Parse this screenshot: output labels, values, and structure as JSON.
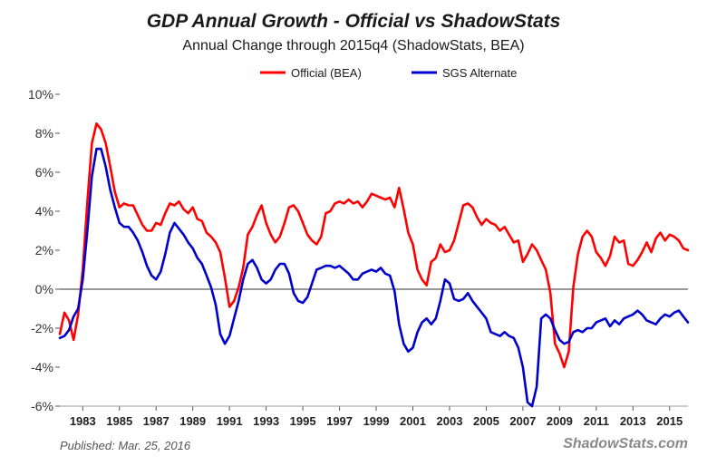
{
  "chart_data": {
    "type": "line",
    "title": "GDP Annual Growth - Official vs ShadowStats",
    "subtitle": "Annual Change through 2015q4  (ShadowStats, BEA)",
    "xlabel": "",
    "ylabel": "",
    "ylim": [
      -6,
      10
    ],
    "xlim": [
      1981.75,
      2016.0
    ],
    "grid": false,
    "legend_position": "top",
    "y_ticks": [
      {
        "value": 10,
        "label": "10%"
      },
      {
        "value": 8,
        "label": "8%"
      },
      {
        "value": 6,
        "label": "6%"
      },
      {
        "value": 4,
        "label": "4%"
      },
      {
        "value": 2,
        "label": "2%"
      },
      {
        "value": 0,
        "label": "0%"
      },
      {
        "value": -2,
        "label": "-2%"
      },
      {
        "value": -4,
        "label": "-4%"
      },
      {
        "value": -6,
        "label": "-6%"
      }
    ],
    "x_ticks": [
      {
        "value": 1983,
        "label": "1983"
      },
      {
        "value": 1985,
        "label": "1985"
      },
      {
        "value": 1987,
        "label": "1987"
      },
      {
        "value": 1989,
        "label": "1989"
      },
      {
        "value": 1991,
        "label": "1991"
      },
      {
        "value": 1993,
        "label": "1993"
      },
      {
        "value": 1995,
        "label": "1995"
      },
      {
        "value": 1997,
        "label": "1997"
      },
      {
        "value": 1999,
        "label": "1999"
      },
      {
        "value": 2001,
        "label": "2001"
      },
      {
        "value": 2003,
        "label": "2003"
      },
      {
        "value": 2005,
        "label": "2005"
      },
      {
        "value": 2007,
        "label": "2007"
      },
      {
        "value": 2009,
        "label": "2009"
      },
      {
        "value": 2011,
        "label": "2011"
      },
      {
        "value": 2013,
        "label": "2013"
      },
      {
        "value": 2015,
        "label": "2015"
      }
    ],
    "zero_line": 0,
    "series": [
      {
        "name": "Official (BEA)",
        "color": "#ff0000",
        "points": [
          [
            1981.75,
            -2.3
          ],
          [
            1982.0,
            -1.2
          ],
          [
            1982.25,
            -1.6
          ],
          [
            1982.5,
            -2.6
          ],
          [
            1982.75,
            -1.3
          ],
          [
            1983.0,
            1.0
          ],
          [
            1983.25,
            4.5
          ],
          [
            1983.5,
            7.5
          ],
          [
            1983.75,
            8.5
          ],
          [
            1984.0,
            8.2
          ],
          [
            1984.25,
            7.5
          ],
          [
            1984.5,
            6.3
          ],
          [
            1984.75,
            5.0
          ],
          [
            1985.0,
            4.2
          ],
          [
            1985.25,
            4.4
          ],
          [
            1985.5,
            4.3
          ],
          [
            1985.75,
            4.3
          ],
          [
            1986.0,
            3.8
          ],
          [
            1986.25,
            3.3
          ],
          [
            1986.5,
            3.0
          ],
          [
            1986.75,
            3.0
          ],
          [
            1987.0,
            3.4
          ],
          [
            1987.25,
            3.3
          ],
          [
            1987.5,
            3.9
          ],
          [
            1987.75,
            4.4
          ],
          [
            1988.0,
            4.3
          ],
          [
            1988.25,
            4.5
          ],
          [
            1988.5,
            4.1
          ],
          [
            1988.75,
            3.9
          ],
          [
            1989.0,
            4.2
          ],
          [
            1989.25,
            3.6
          ],
          [
            1989.5,
            3.5
          ],
          [
            1989.75,
            2.9
          ],
          [
            1990.0,
            2.7
          ],
          [
            1990.25,
            2.4
          ],
          [
            1990.5,
            1.9
          ],
          [
            1990.75,
            0.6
          ],
          [
            1991.0,
            -0.9
          ],
          [
            1991.25,
            -0.6
          ],
          [
            1991.5,
            0.1
          ],
          [
            1991.75,
            1.1
          ],
          [
            1992.0,
            2.8
          ],
          [
            1992.25,
            3.2
          ],
          [
            1992.5,
            3.8
          ],
          [
            1992.75,
            4.3
          ],
          [
            1993.0,
            3.4
          ],
          [
            1993.25,
            2.8
          ],
          [
            1993.5,
            2.4
          ],
          [
            1993.75,
            2.7
          ],
          [
            1994.0,
            3.4
          ],
          [
            1994.25,
            4.2
          ],
          [
            1994.5,
            4.3
          ],
          [
            1994.75,
            4.0
          ],
          [
            1995.0,
            3.4
          ],
          [
            1995.25,
            2.8
          ],
          [
            1995.5,
            2.5
          ],
          [
            1995.75,
            2.3
          ],
          [
            1996.0,
            2.7
          ],
          [
            1996.25,
            3.9
          ],
          [
            1996.5,
            4.0
          ],
          [
            1996.75,
            4.4
          ],
          [
            1997.0,
            4.5
          ],
          [
            1997.25,
            4.4
          ],
          [
            1997.5,
            4.6
          ],
          [
            1997.75,
            4.4
          ],
          [
            1998.0,
            4.5
          ],
          [
            1998.25,
            4.2
          ],
          [
            1998.5,
            4.5
          ],
          [
            1998.75,
            4.9
          ],
          [
            1999.0,
            4.8
          ],
          [
            1999.25,
            4.7
          ],
          [
            1999.5,
            4.6
          ],
          [
            1999.75,
            4.7
          ],
          [
            2000.0,
            4.2
          ],
          [
            2000.25,
            5.2
          ],
          [
            2000.5,
            4.1
          ],
          [
            2000.75,
            2.9
          ],
          [
            2001.0,
            2.3
          ],
          [
            2001.25,
            1.0
          ],
          [
            2001.5,
            0.5
          ],
          [
            2001.75,
            0.2
          ],
          [
            2002.0,
            1.4
          ],
          [
            2002.25,
            1.6
          ],
          [
            2002.5,
            2.3
          ],
          [
            2002.75,
            1.9
          ],
          [
            2003.0,
            2.0
          ],
          [
            2003.25,
            2.5
          ],
          [
            2003.5,
            3.4
          ],
          [
            2003.75,
            4.3
          ],
          [
            2004.0,
            4.4
          ],
          [
            2004.25,
            4.2
          ],
          [
            2004.5,
            3.7
          ],
          [
            2004.75,
            3.3
          ],
          [
            2005.0,
            3.6
          ],
          [
            2005.25,
            3.4
          ],
          [
            2005.5,
            3.3
          ],
          [
            2005.75,
            3.0
          ],
          [
            2006.0,
            3.2
          ],
          [
            2006.25,
            2.8
          ],
          [
            2006.5,
            2.4
          ],
          [
            2006.75,
            2.5
          ],
          [
            2007.0,
            1.4
          ],
          [
            2007.25,
            1.8
          ],
          [
            2007.5,
            2.3
          ],
          [
            2007.75,
            2.0
          ],
          [
            2008.0,
            1.5
          ],
          [
            2008.25,
            1.0
          ],
          [
            2008.5,
            -0.2
          ],
          [
            2008.75,
            -2.8
          ],
          [
            2009.0,
            -3.3
          ],
          [
            2009.25,
            -4.0
          ],
          [
            2009.5,
            -3.2
          ],
          [
            2009.75,
            0.1
          ],
          [
            2010.0,
            1.8
          ],
          [
            2010.25,
            2.7
          ],
          [
            2010.5,
            3.0
          ],
          [
            2010.75,
            2.7
          ],
          [
            2011.0,
            1.9
          ],
          [
            2011.25,
            1.6
          ],
          [
            2011.5,
            1.2
          ],
          [
            2011.75,
            1.7
          ],
          [
            2012.0,
            2.7
          ],
          [
            2012.25,
            2.4
          ],
          [
            2012.5,
            2.5
          ],
          [
            2012.75,
            1.3
          ],
          [
            2013.0,
            1.2
          ],
          [
            2013.25,
            1.5
          ],
          [
            2013.5,
            1.9
          ],
          [
            2013.75,
            2.4
          ],
          [
            2014.0,
            1.9
          ],
          [
            2014.25,
            2.6
          ],
          [
            2014.5,
            2.9
          ],
          [
            2014.75,
            2.5
          ],
          [
            2015.0,
            2.8
          ],
          [
            2015.25,
            2.7
          ],
          [
            2015.5,
            2.5
          ],
          [
            2015.75,
            2.1
          ],
          [
            2016.0,
            2.0
          ]
        ]
      },
      {
        "name": "SGS Alternate",
        "color": "#0000cc",
        "points": [
          [
            1981.75,
            -2.5
          ],
          [
            1982.0,
            -2.4
          ],
          [
            1982.25,
            -2.1
          ],
          [
            1982.5,
            -1.4
          ],
          [
            1982.75,
            -1.0
          ],
          [
            1983.0,
            0.5
          ],
          [
            1983.25,
            3.0
          ],
          [
            1983.5,
            5.8
          ],
          [
            1983.75,
            7.2
          ],
          [
            1984.0,
            7.2
          ],
          [
            1984.25,
            6.3
          ],
          [
            1984.5,
            5.1
          ],
          [
            1984.75,
            4.2
          ],
          [
            1985.0,
            3.4
          ],
          [
            1985.25,
            3.2
          ],
          [
            1985.5,
            3.2
          ],
          [
            1985.75,
            2.9
          ],
          [
            1986.0,
            2.5
          ],
          [
            1986.25,
            1.9
          ],
          [
            1986.5,
            1.2
          ],
          [
            1986.75,
            0.7
          ],
          [
            1987.0,
            0.5
          ],
          [
            1987.25,
            0.9
          ],
          [
            1987.5,
            1.8
          ],
          [
            1987.75,
            2.9
          ],
          [
            1988.0,
            3.4
          ],
          [
            1988.25,
            3.1
          ],
          [
            1988.5,
            2.8
          ],
          [
            1988.75,
            2.4
          ],
          [
            1989.0,
            2.1
          ],
          [
            1989.25,
            1.6
          ],
          [
            1989.5,
            1.3
          ],
          [
            1989.75,
            0.7
          ],
          [
            1990.0,
            0.1
          ],
          [
            1990.25,
            -0.8
          ],
          [
            1990.5,
            -2.3
          ],
          [
            1990.75,
            -2.8
          ],
          [
            1991.0,
            -2.4
          ],
          [
            1991.25,
            -1.5
          ],
          [
            1991.5,
            -0.6
          ],
          [
            1991.75,
            0.5
          ],
          [
            1992.0,
            1.3
          ],
          [
            1992.25,
            1.5
          ],
          [
            1992.5,
            1.1
          ],
          [
            1992.75,
            0.5
          ],
          [
            1993.0,
            0.3
          ],
          [
            1993.25,
            0.5
          ],
          [
            1993.5,
            1.0
          ],
          [
            1993.75,
            1.3
          ],
          [
            1994.0,
            1.3
          ],
          [
            1994.25,
            0.8
          ],
          [
            1994.5,
            -0.2
          ],
          [
            1994.75,
            -0.6
          ],
          [
            1995.0,
            -0.7
          ],
          [
            1995.25,
            -0.4
          ],
          [
            1995.5,
            0.3
          ],
          [
            1995.75,
            1.0
          ],
          [
            1996.0,
            1.1
          ],
          [
            1996.25,
            1.2
          ],
          [
            1996.5,
            1.2
          ],
          [
            1996.75,
            1.1
          ],
          [
            1997.0,
            1.2
          ],
          [
            1997.25,
            1.0
          ],
          [
            1997.5,
            0.8
          ],
          [
            1997.75,
            0.5
          ],
          [
            1998.0,
            0.5
          ],
          [
            1998.25,
            0.8
          ],
          [
            1998.5,
            0.9
          ],
          [
            1998.75,
            1.0
          ],
          [
            1999.0,
            0.9
          ],
          [
            1999.25,
            1.1
          ],
          [
            1999.5,
            0.8
          ],
          [
            1999.75,
            0.7
          ],
          [
            2000.0,
            -0.1
          ],
          [
            2000.25,
            -1.8
          ],
          [
            2000.5,
            -2.8
          ],
          [
            2000.75,
            -3.2
          ],
          [
            2001.0,
            -3.0
          ],
          [
            2001.25,
            -2.2
          ],
          [
            2001.5,
            -1.7
          ],
          [
            2001.75,
            -1.5
          ],
          [
            2002.0,
            -1.8
          ],
          [
            2002.25,
            -1.5
          ],
          [
            2002.5,
            -0.6
          ],
          [
            2002.75,
            0.5
          ],
          [
            2003.0,
            0.3
          ],
          [
            2003.25,
            -0.5
          ],
          [
            2003.5,
            -0.6
          ],
          [
            2003.75,
            -0.5
          ],
          [
            2004.0,
            -0.2
          ],
          [
            2004.25,
            -0.6
          ],
          [
            2004.5,
            -0.9
          ],
          [
            2004.75,
            -1.2
          ],
          [
            2005.0,
            -1.5
          ],
          [
            2005.25,
            -2.2
          ],
          [
            2005.5,
            -2.3
          ],
          [
            2005.75,
            -2.4
          ],
          [
            2006.0,
            -2.2
          ],
          [
            2006.25,
            -2.4
          ],
          [
            2006.5,
            -2.5
          ],
          [
            2006.75,
            -3.0
          ],
          [
            2007.0,
            -4.0
          ],
          [
            2007.25,
            -5.8
          ],
          [
            2007.5,
            -6.0
          ],
          [
            2007.75,
            -5.0
          ],
          [
            2008.0,
            -1.5
          ],
          [
            2008.25,
            -1.3
          ],
          [
            2008.5,
            -1.5
          ],
          [
            2008.75,
            -2.1
          ],
          [
            2009.0,
            -2.6
          ],
          [
            2009.25,
            -2.8
          ],
          [
            2009.5,
            -2.7
          ],
          [
            2009.75,
            -2.2
          ],
          [
            2010.0,
            -2.1
          ],
          [
            2010.25,
            -2.2
          ],
          [
            2010.5,
            -2.0
          ],
          [
            2010.75,
            -2.0
          ],
          [
            2011.0,
            -1.7
          ],
          [
            2011.25,
            -1.6
          ],
          [
            2011.5,
            -1.5
          ],
          [
            2011.75,
            -1.9
          ],
          [
            2012.0,
            -1.6
          ],
          [
            2012.25,
            -1.8
          ],
          [
            2012.5,
            -1.5
          ],
          [
            2012.75,
            -1.4
          ],
          [
            2013.0,
            -1.3
          ],
          [
            2013.25,
            -1.1
          ],
          [
            2013.5,
            -1.3
          ],
          [
            2013.75,
            -1.6
          ],
          [
            2014.0,
            -1.7
          ],
          [
            2014.25,
            -1.8
          ],
          [
            2014.5,
            -1.5
          ],
          [
            2014.75,
            -1.3
          ],
          [
            2015.0,
            -1.4
          ],
          [
            2015.25,
            -1.2
          ],
          [
            2015.5,
            -1.1
          ],
          [
            2015.75,
            -1.4
          ],
          [
            2016.0,
            -1.7
          ]
        ]
      }
    ]
  },
  "footer": {
    "published": "Published: Mar. 25, 2016",
    "watermark": "ShadowStats.com"
  }
}
